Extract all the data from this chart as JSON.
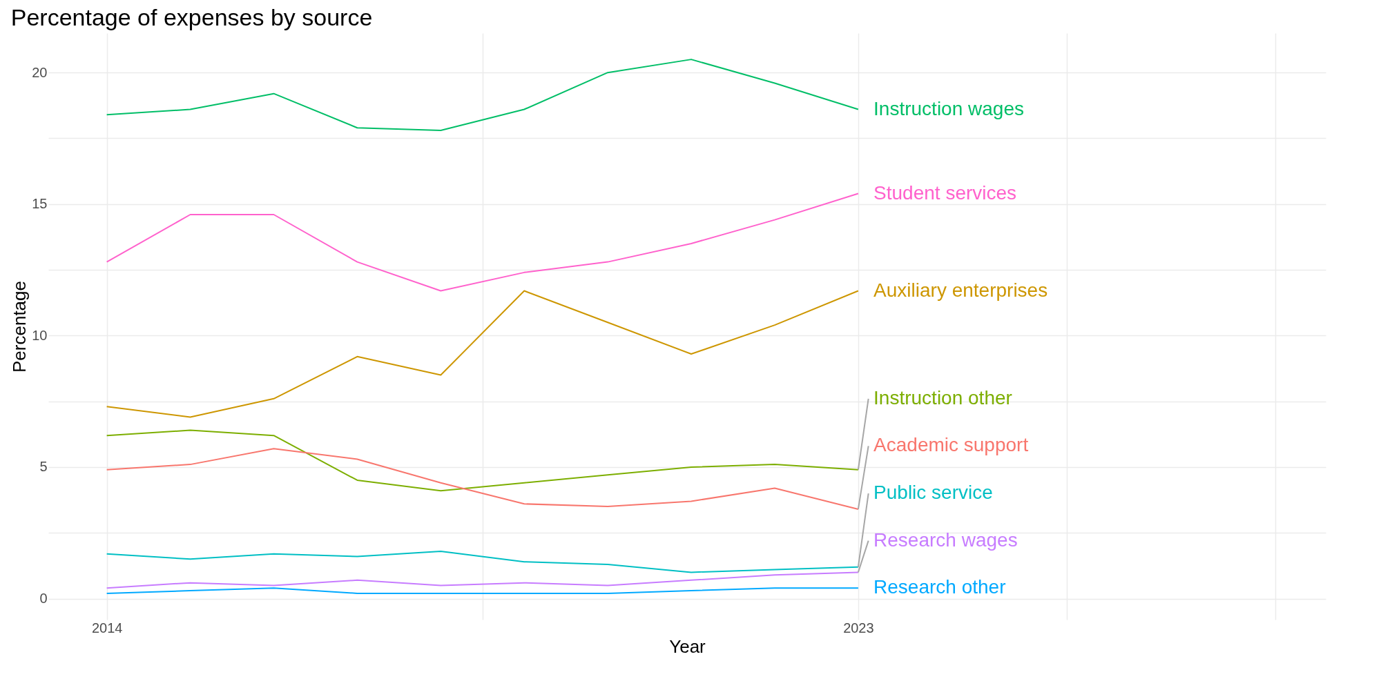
{
  "chart_data": {
    "type": "line",
    "title": "Percentage of expenses by source",
    "xlabel": "Year",
    "ylabel": "Percentage",
    "x": [
      2014,
      2015,
      2016,
      2017,
      2018,
      2019,
      2020,
      2021,
      2022,
      2023
    ],
    "series": [
      {
        "name": "Instruction wages",
        "color": "#00be67",
        "values": [
          18.4,
          18.6,
          19.2,
          17.9,
          17.8,
          18.6,
          20.0,
          20.5,
          19.6,
          18.6
        ]
      },
      {
        "name": "Student services",
        "color": "#ff61cc",
        "values": [
          12.8,
          14.6,
          14.6,
          12.8,
          11.7,
          12.4,
          12.8,
          13.5,
          14.4,
          15.4
        ]
      },
      {
        "name": "Auxiliary enterprises",
        "color": "#cd9600",
        "values": [
          7.3,
          6.9,
          7.6,
          9.2,
          8.5,
          11.7,
          10.5,
          9.3,
          10.4,
          11.7
        ]
      },
      {
        "name": "Instruction other",
        "color": "#7cae00",
        "values": [
          6.2,
          6.4,
          6.2,
          4.5,
          4.1,
          4.4,
          4.7,
          5.0,
          5.1,
          4.9
        ]
      },
      {
        "name": "Academic support",
        "color": "#f8766d",
        "values": [
          4.9,
          5.1,
          5.7,
          5.3,
          4.4,
          3.6,
          3.5,
          3.7,
          4.2,
          3.4
        ]
      },
      {
        "name": "Public service",
        "color": "#00bfc4",
        "values": [
          1.7,
          1.5,
          1.7,
          1.6,
          1.8,
          1.4,
          1.3,
          1.0,
          1.1,
          1.2
        ]
      },
      {
        "name": "Research wages",
        "color": "#c77cff",
        "values": [
          0.4,
          0.6,
          0.5,
          0.7,
          0.5,
          0.6,
          0.5,
          0.7,
          0.9,
          1.0
        ]
      },
      {
        "name": "Research other",
        "color": "#00a9ff",
        "values": [
          0.2,
          0.3,
          0.4,
          0.2,
          0.2,
          0.2,
          0.2,
          0.3,
          0.4,
          0.4
        ]
      }
    ],
    "xlim": [
      2013.3,
      2028.6
    ],
    "xticks": [
      2014,
      {
        "value": 2018.5,
        "label": null
      },
      2023,
      {
        "value": 2025.5,
        "label": null
      },
      {
        "value": 2028,
        "label": null
      }
    ],
    "ylim": [
      -0.8,
      21.5
    ],
    "yticks": [
      0,
      {
        "value": 2.5,
        "label": null
      },
      5,
      {
        "value": 7.5,
        "label": null
      },
      10,
      {
        "value": 12.5,
        "label": null
      },
      15,
      {
        "value": 17.5,
        "label": null
      },
      20
    ],
    "grid": true,
    "marker": "none",
    "line_style": "solid"
  }
}
